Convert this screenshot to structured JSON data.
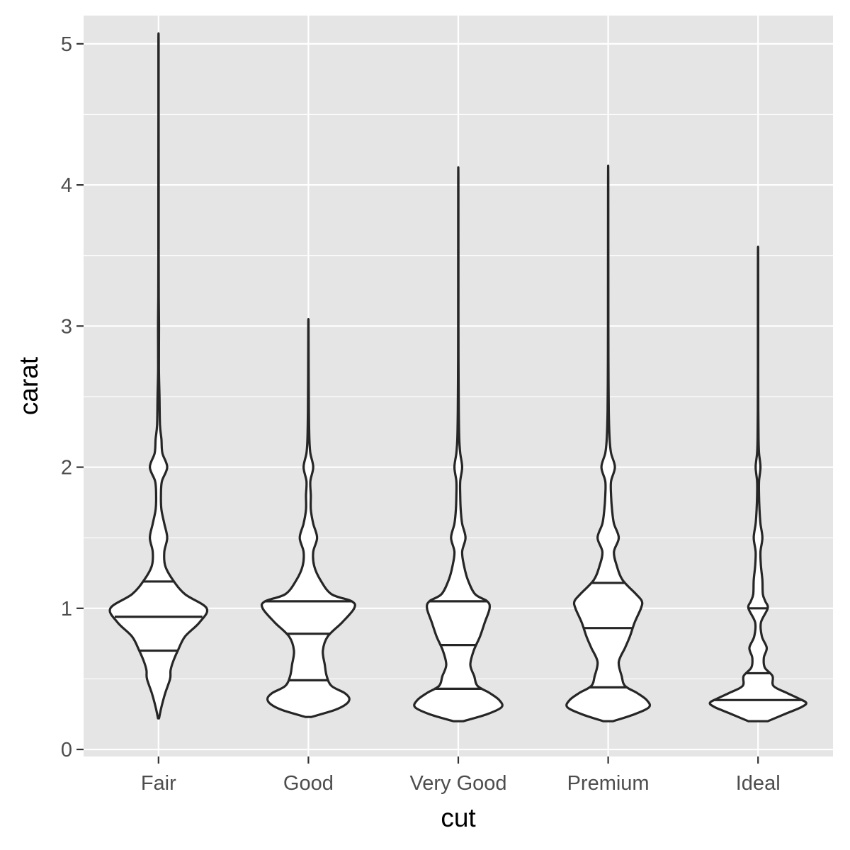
{
  "chart_data": {
    "type": "violin",
    "title": "",
    "xlabel": "cut",
    "ylabel": "carat",
    "ylim": [
      -0.05,
      5.2
    ],
    "yticks": [
      0,
      1,
      2,
      3,
      4,
      5
    ],
    "minor_yticks": [
      0.5,
      1.5,
      2.5,
      3.5,
      4.5
    ],
    "grid": true,
    "legend": "none",
    "colors": {
      "panel": "#e5e5e5",
      "grid": "#ffffff",
      "violin_fill": "#ffffff",
      "violin_line": "#262626"
    },
    "categories": [
      "Fair",
      "Good",
      "Very Good",
      "Premium",
      "Ideal"
    ],
    "violins": [
      {
        "category": "Fair",
        "min": 0.22,
        "max": 5.01,
        "quantiles": [
          0.7,
          0.94,
          1.19
        ],
        "density": [
          [
            0.22,
            0.01
          ],
          [
            0.3,
            0.06
          ],
          [
            0.4,
            0.14
          ],
          [
            0.5,
            0.24
          ],
          [
            0.56,
            0.25
          ],
          [
            0.62,
            0.3
          ],
          [
            0.7,
            0.4
          ],
          [
            0.8,
            0.55
          ],
          [
            0.9,
            0.85
          ],
          [
            1.0,
            1.0
          ],
          [
            1.1,
            0.55
          ],
          [
            1.2,
            0.3
          ],
          [
            1.3,
            0.14
          ],
          [
            1.4,
            0.12
          ],
          [
            1.5,
            0.18
          ],
          [
            1.6,
            0.12
          ],
          [
            1.7,
            0.06
          ],
          [
            1.8,
            0.05
          ],
          [
            1.9,
            0.07
          ],
          [
            2.0,
            0.18
          ],
          [
            2.1,
            0.08
          ],
          [
            2.2,
            0.06
          ],
          [
            2.3,
            0.03
          ],
          [
            2.5,
            0.02
          ],
          [
            2.7,
            0.008
          ],
          [
            3.0,
            0.01
          ],
          [
            3.2,
            0.005
          ],
          [
            3.5,
            0.003
          ],
          [
            4.0,
            0.003
          ],
          [
            4.5,
            0.002
          ],
          [
            5.01,
            0.002
          ]
        ]
      },
      {
        "category": "Good",
        "min": 0.23,
        "max": 3.01,
        "quantiles": [
          0.49,
          0.82,
          1.05
        ],
        "density": [
          [
            0.23,
            0.06
          ],
          [
            0.28,
            0.55
          ],
          [
            0.32,
            0.78
          ],
          [
            0.36,
            0.85
          ],
          [
            0.4,
            0.75
          ],
          [
            0.45,
            0.48
          ],
          [
            0.52,
            0.38
          ],
          [
            0.6,
            0.34
          ],
          [
            0.7,
            0.3
          ],
          [
            0.8,
            0.4
          ],
          [
            0.9,
            0.7
          ],
          [
            1.0,
            0.95
          ],
          [
            1.05,
            0.9
          ],
          [
            1.1,
            0.48
          ],
          [
            1.2,
            0.25
          ],
          [
            1.3,
            0.12
          ],
          [
            1.4,
            0.1
          ],
          [
            1.5,
            0.18
          ],
          [
            1.6,
            0.1
          ],
          [
            1.7,
            0.05
          ],
          [
            1.8,
            0.05
          ],
          [
            1.9,
            0.04
          ],
          [
            2.0,
            0.1
          ],
          [
            2.1,
            0.04
          ],
          [
            2.2,
            0.02
          ],
          [
            2.4,
            0.01
          ],
          [
            2.7,
            0.005
          ],
          [
            3.01,
            0.002
          ]
        ]
      },
      {
        "category": "Very Good",
        "min": 0.2,
        "max": 4.0,
        "quantiles": [
          0.43,
          0.74,
          1.05
        ],
        "density": [
          [
            0.2,
            0.1
          ],
          [
            0.25,
            0.6
          ],
          [
            0.3,
            0.9
          ],
          [
            0.35,
            0.85
          ],
          [
            0.4,
            0.65
          ],
          [
            0.45,
            0.4
          ],
          [
            0.52,
            0.33
          ],
          [
            0.6,
            0.25
          ],
          [
            0.7,
            0.32
          ],
          [
            0.8,
            0.45
          ],
          [
            0.9,
            0.55
          ],
          [
            1.0,
            0.65
          ],
          [
            1.05,
            0.6
          ],
          [
            1.1,
            0.35
          ],
          [
            1.2,
            0.2
          ],
          [
            1.3,
            0.12
          ],
          [
            1.4,
            0.08
          ],
          [
            1.5,
            0.15
          ],
          [
            1.6,
            0.08
          ],
          [
            1.7,
            0.05
          ],
          [
            1.8,
            0.04
          ],
          [
            1.9,
            0.04
          ],
          [
            2.0,
            0.08
          ],
          [
            2.1,
            0.04
          ],
          [
            2.2,
            0.02
          ],
          [
            2.4,
            0.01
          ],
          [
            2.7,
            0.005
          ],
          [
            3.0,
            0.003
          ],
          [
            4.0,
            0.002
          ]
        ]
      },
      {
        "category": "Premium",
        "min": 0.2,
        "max": 4.01,
        "quantiles": [
          0.44,
          0.86,
          1.18
        ],
        "density": [
          [
            0.2,
            0.1
          ],
          [
            0.25,
            0.55
          ],
          [
            0.3,
            0.85
          ],
          [
            0.35,
            0.8
          ],
          [
            0.4,
            0.6
          ],
          [
            0.45,
            0.35
          ],
          [
            0.52,
            0.28
          ],
          [
            0.62,
            0.22
          ],
          [
            0.72,
            0.35
          ],
          [
            0.8,
            0.45
          ],
          [
            0.9,
            0.55
          ],
          [
            1.0,
            0.68
          ],
          [
            1.05,
            0.7
          ],
          [
            1.1,
            0.58
          ],
          [
            1.2,
            0.3
          ],
          [
            1.3,
            0.18
          ],
          [
            1.4,
            0.12
          ],
          [
            1.5,
            0.22
          ],
          [
            1.6,
            0.12
          ],
          [
            1.7,
            0.08
          ],
          [
            1.8,
            0.06
          ],
          [
            1.9,
            0.06
          ],
          [
            2.0,
            0.14
          ],
          [
            2.1,
            0.06
          ],
          [
            2.2,
            0.03
          ],
          [
            2.4,
            0.012
          ],
          [
            2.7,
            0.006
          ],
          [
            3.0,
            0.004
          ],
          [
            4.01,
            0.002
          ]
        ]
      },
      {
        "category": "Ideal",
        "min": 0.2,
        "max": 3.5,
        "quantiles": [
          0.35,
          0.54,
          1.0
        ],
        "density": [
          [
            0.2,
            0.2
          ],
          [
            0.25,
            0.55
          ],
          [
            0.3,
            0.9
          ],
          [
            0.33,
            1.0
          ],
          [
            0.36,
            0.85
          ],
          [
            0.4,
            0.6
          ],
          [
            0.45,
            0.32
          ],
          [
            0.52,
            0.3
          ],
          [
            0.58,
            0.14
          ],
          [
            0.65,
            0.12
          ],
          [
            0.72,
            0.18
          ],
          [
            0.8,
            0.08
          ],
          [
            0.9,
            0.06
          ],
          [
            1.0,
            0.2
          ],
          [
            1.05,
            0.15
          ],
          [
            1.1,
            0.1
          ],
          [
            1.2,
            0.09
          ],
          [
            1.3,
            0.06
          ],
          [
            1.4,
            0.05
          ],
          [
            1.5,
            0.09
          ],
          [
            1.6,
            0.05
          ],
          [
            1.7,
            0.03
          ],
          [
            1.8,
            0.02
          ],
          [
            1.9,
            0.02
          ],
          [
            2.0,
            0.05
          ],
          [
            2.1,
            0.02
          ],
          [
            2.2,
            0.01
          ],
          [
            2.4,
            0.005
          ],
          [
            2.7,
            0.003
          ],
          [
            3.0,
            0.003
          ],
          [
            3.5,
            0.002
          ]
        ]
      }
    ]
  }
}
